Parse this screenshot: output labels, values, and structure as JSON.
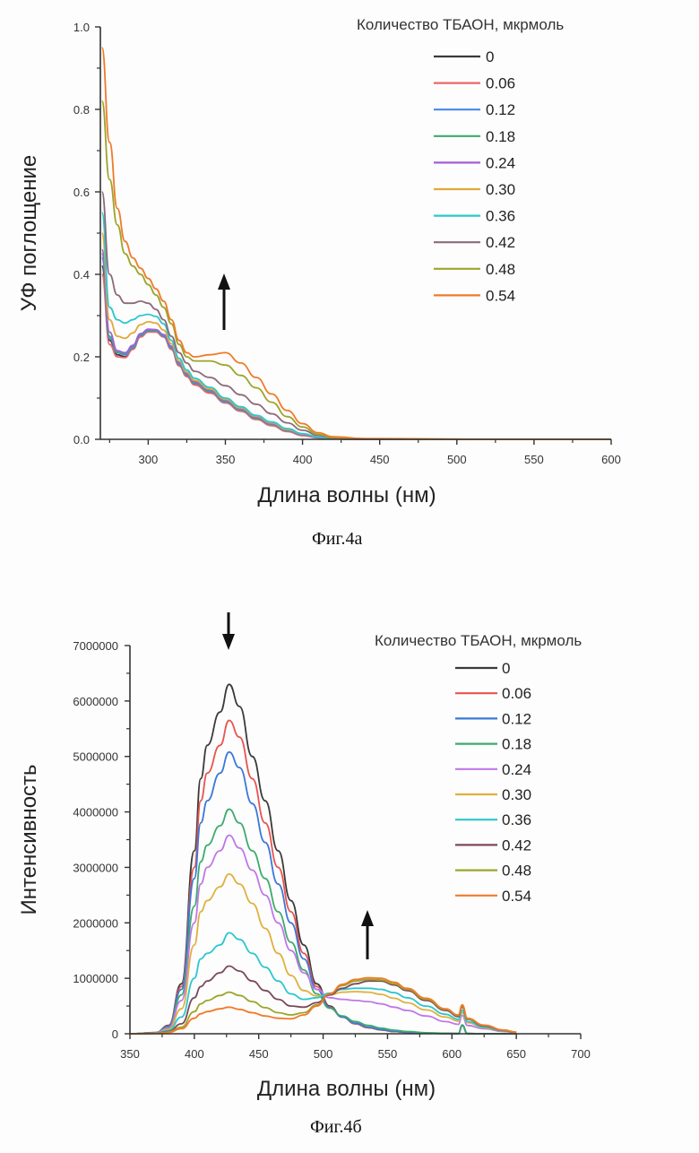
{
  "chart_data": [
    {
      "type": "line",
      "title": "",
      "caption": "Фиг.4а",
      "xlabel": "Длина волны (нм)",
      "ylabel": "УФ поглощение",
      "xlim": [
        269,
        600
      ],
      "ylim": [
        0,
        1.0
      ],
      "xticks": [
        300,
        350,
        400,
        450,
        500,
        550,
        600
      ],
      "yticks": [
        0.0,
        0.2,
        0.4,
        0.6,
        0.8,
        1.0
      ],
      "ytick_labels": [
        "0.0",
        "0.2",
        "0.4",
        "0.6",
        "0.8",
        "1.0"
      ],
      "grid": false,
      "legend_title": "Количество ТБАОН, мкрмоль",
      "legend_position": "top-right",
      "annotation": "up-arrow near 350 nm",
      "x": [
        270,
        275,
        280,
        285,
        290,
        295,
        300,
        305,
        310,
        315,
        320,
        325,
        330,
        340,
        350,
        360,
        370,
        380,
        390,
        400,
        410,
        420,
        440,
        480,
        520,
        600
      ],
      "series": [
        {
          "name": "0",
          "color": "#3a3a3a",
          "values": [
            0.42,
            0.24,
            0.205,
            0.2,
            0.22,
            0.25,
            0.262,
            0.262,
            0.25,
            0.22,
            0.18,
            0.155,
            0.135,
            0.115,
            0.09,
            0.07,
            0.05,
            0.035,
            0.02,
            0.01,
            0.004,
            0.001,
            0,
            0,
            0,
            0
          ]
        },
        {
          "name": "0.06",
          "color": "#e8696b",
          "values": [
            0.4,
            0.23,
            0.2,
            0.198,
            0.218,
            0.248,
            0.26,
            0.26,
            0.248,
            0.218,
            0.178,
            0.152,
            0.132,
            0.112,
            0.088,
            0.068,
            0.048,
            0.033,
            0.019,
            0.009,
            0.004,
            0.001,
            0,
            0,
            0,
            0
          ]
        },
        {
          "name": "0.12",
          "color": "#4a86e8",
          "values": [
            0.44,
            0.245,
            0.21,
            0.205,
            0.222,
            0.252,
            0.263,
            0.263,
            0.25,
            0.222,
            0.182,
            0.156,
            0.136,
            0.116,
            0.091,
            0.071,
            0.051,
            0.036,
            0.021,
            0.011,
            0.005,
            0.001,
            0,
            0,
            0,
            0
          ]
        },
        {
          "name": "0.18",
          "color": "#3daa6e",
          "values": [
            0.45,
            0.25,
            0.212,
            0.208,
            0.225,
            0.254,
            0.265,
            0.264,
            0.252,
            0.224,
            0.184,
            0.158,
            0.138,
            0.118,
            0.093,
            0.072,
            0.052,
            0.037,
            0.022,
            0.012,
            0.005,
            0.001,
            0,
            0,
            0,
            0
          ]
        },
        {
          "name": "0.24",
          "color": "#a25fd8",
          "values": [
            0.46,
            0.26,
            0.215,
            0.21,
            0.228,
            0.256,
            0.267,
            0.266,
            0.254,
            0.226,
            0.186,
            0.16,
            0.14,
            0.12,
            0.095,
            0.074,
            0.054,
            0.038,
            0.023,
            0.012,
            0.005,
            0.001,
            0,
            0,
            0,
            0
          ]
        },
        {
          "name": "0.30",
          "color": "#e0a93a",
          "values": [
            0.5,
            0.29,
            0.25,
            0.245,
            0.258,
            0.278,
            0.285,
            0.282,
            0.265,
            0.232,
            0.19,
            0.163,
            0.143,
            0.122,
            0.097,
            0.076,
            0.056,
            0.04,
            0.024,
            0.013,
            0.006,
            0.001,
            0,
            0,
            0,
            0
          ]
        },
        {
          "name": "0.36",
          "color": "#2bc7cf",
          "values": [
            0.55,
            0.32,
            0.29,
            0.282,
            0.29,
            0.3,
            0.303,
            0.298,
            0.28,
            0.24,
            0.196,
            0.168,
            0.148,
            0.126,
            0.1,
            0.079,
            0.058,
            0.042,
            0.026,
            0.014,
            0.006,
            0.001,
            0,
            0,
            0,
            0
          ]
        },
        {
          "name": "0.42",
          "color": "#8c6a7a",
          "values": [
            0.6,
            0.4,
            0.35,
            0.33,
            0.33,
            0.335,
            0.33,
            0.315,
            0.29,
            0.25,
            0.21,
            0.185,
            0.165,
            0.15,
            0.13,
            0.108,
            0.085,
            0.062,
            0.04,
            0.022,
            0.01,
            0.003,
            0,
            0,
            0,
            0
          ]
        },
        {
          "name": "0.48",
          "color": "#9ca52a",
          "values": [
            0.82,
            0.63,
            0.52,
            0.45,
            0.42,
            0.4,
            0.375,
            0.35,
            0.32,
            0.28,
            0.23,
            0.2,
            0.19,
            0.19,
            0.18,
            0.155,
            0.125,
            0.09,
            0.055,
            0.03,
            0.012,
            0.004,
            0.001,
            0,
            0,
            0
          ]
        },
        {
          "name": "0.54",
          "color": "#f07a2a",
          "values": [
            0.95,
            0.72,
            0.56,
            0.48,
            0.44,
            0.415,
            0.39,
            0.365,
            0.335,
            0.29,
            0.24,
            0.21,
            0.2,
            0.205,
            0.21,
            0.185,
            0.15,
            0.11,
            0.07,
            0.038,
            0.016,
            0.006,
            0.002,
            0.001,
            0,
            0
          ]
        }
      ]
    },
    {
      "type": "line",
      "title": "",
      "caption": "Фиг.4б",
      "xlabel": "Длина волны (нм)",
      "ylabel": "Интенсивность",
      "xlim": [
        350,
        700
      ],
      "ylim": [
        0,
        7000000
      ],
      "xticks": [
        350,
        400,
        450,
        500,
        550,
        600,
        650,
        700
      ],
      "yticks": [
        0,
        1000000,
        2000000,
        3000000,
        4000000,
        5000000,
        6000000,
        7000000
      ],
      "ytick_labels": [
        "0",
        "1000000",
        "2000000",
        "3000000",
        "4000000",
        "5000000",
        "6000000",
        "7000000"
      ],
      "grid": false,
      "legend_title": "Количество ТБАОН, мкрмоль",
      "legend_position": "top-right",
      "annotation": "down-arrow above 427 nm peak; up-arrow near 535 nm",
      "x": [
        350,
        370,
        380,
        390,
        400,
        405,
        410,
        420,
        427,
        435,
        445,
        455,
        465,
        475,
        485,
        495,
        505,
        515,
        525,
        535,
        545,
        555,
        565,
        580,
        595,
        605,
        608,
        612,
        625,
        640,
        650
      ],
      "series": [
        {
          "name": "0",
          "color": "#3a3a3a",
          "values": [
            0,
            20000,
            150000,
            900000,
            3300000,
            4600000,
            5200000,
            5800000,
            6300000,
            5900000,
            5000000,
            4200000,
            3300000,
            2400000,
            1600000,
            900000,
            500000,
            300000,
            180000,
            110000,
            70000,
            40000,
            25000,
            10000,
            5000,
            3000,
            150000,
            3000,
            0,
            0,
            0
          ]
        },
        {
          "name": "0.06",
          "color": "#e8534f",
          "values": [
            0,
            20000,
            140000,
            850000,
            3000000,
            4200000,
            4700000,
            5200000,
            5650000,
            5350000,
            4600000,
            3800000,
            3000000,
            2200000,
            1450000,
            850000,
            480000,
            300000,
            180000,
            110000,
            70000,
            40000,
            25000,
            10000,
            5000,
            3000,
            150000,
            3000,
            0,
            0,
            0
          ]
        },
        {
          "name": "0.12",
          "color": "#3a78d8",
          "values": [
            0,
            20000,
            130000,
            800000,
            2800000,
            3800000,
            4200000,
            4700000,
            5080000,
            4800000,
            4150000,
            3450000,
            2700000,
            2000000,
            1350000,
            800000,
            470000,
            300000,
            190000,
            120000,
            75000,
            45000,
            28000,
            12000,
            6000,
            3000,
            150000,
            3000,
            0,
            0,
            0
          ]
        },
        {
          "name": "0.18",
          "color": "#3daa6e",
          "values": [
            0,
            15000,
            110000,
            700000,
            2300000,
            3100000,
            3400000,
            3750000,
            4050000,
            3800000,
            3300000,
            2800000,
            2200000,
            1650000,
            1150000,
            720000,
            460000,
            320000,
            220000,
            150000,
            100000,
            65000,
            40000,
            18000,
            8000,
            4000,
            160000,
            4000,
            0,
            0,
            0
          ]
        },
        {
          "name": "0.24",
          "color": "#bf78e8",
          "values": [
            0,
            15000,
            100000,
            600000,
            2000000,
            2700000,
            3000000,
            3300000,
            3580000,
            3350000,
            2950000,
            2500000,
            2000000,
            1500000,
            1100000,
            800000,
            650000,
            620000,
            600000,
            580000,
            540000,
            480000,
            420000,
            320000,
            220000,
            170000,
            330000,
            150000,
            90000,
            40000,
            20000
          ]
        },
        {
          "name": "0.30",
          "color": "#e0b03e",
          "values": [
            0,
            12000,
            80000,
            450000,
            1600000,
            2200000,
            2400000,
            2650000,
            2880000,
            2700000,
            2350000,
            1900000,
            1450000,
            1050000,
            780000,
            680000,
            700000,
            750000,
            760000,
            750000,
            710000,
            640000,
            560000,
            430000,
            300000,
            230000,
            380000,
            200000,
            110000,
            50000,
            25000
          ]
        },
        {
          "name": "0.36",
          "color": "#2bc7cf",
          "values": [
            0,
            10000,
            60000,
            300000,
            1000000,
            1350000,
            1450000,
            1600000,
            1820000,
            1700000,
            1450000,
            1200000,
            950000,
            720000,
            620000,
            650000,
            730000,
            800000,
            820000,
            820000,
            800000,
            740000,
            650000,
            500000,
            350000,
            260000,
            420000,
            220000,
            120000,
            55000,
            25000
          ]
        },
        {
          "name": "0.42",
          "color": "#7a4a5a",
          "values": [
            0,
            8000,
            40000,
            180000,
            650000,
            850000,
            950000,
            1100000,
            1220000,
            1130000,
            950000,
            780000,
            620000,
            500000,
            480000,
            560000,
            700000,
            820000,
            900000,
            950000,
            950000,
            880000,
            780000,
            600000,
            420000,
            310000,
            480000,
            260000,
            140000,
            60000,
            25000
          ]
        },
        {
          "name": "0.48",
          "color": "#9ca52a",
          "values": [
            0,
            6000,
            30000,
            120000,
            400000,
            540000,
            600000,
            690000,
            750000,
            690000,
            580000,
            470000,
            380000,
            340000,
            380000,
            520000,
            720000,
            870000,
            950000,
            980000,
            970000,
            900000,
            800000,
            620000,
            440000,
            330000,
            500000,
            270000,
            150000,
            65000,
            28000
          ]
        },
        {
          "name": "0.54",
          "color": "#f07a2a",
          "values": [
            0,
            5000,
            25000,
            90000,
            280000,
            360000,
            400000,
            450000,
            480000,
            440000,
            380000,
            320000,
            280000,
            270000,
            340000,
            500000,
            720000,
            890000,
            980000,
            1010000,
            1000000,
            930000,
            820000,
            640000,
            450000,
            340000,
            520000,
            280000,
            155000,
            68000,
            30000
          ]
        }
      ]
    }
  ]
}
